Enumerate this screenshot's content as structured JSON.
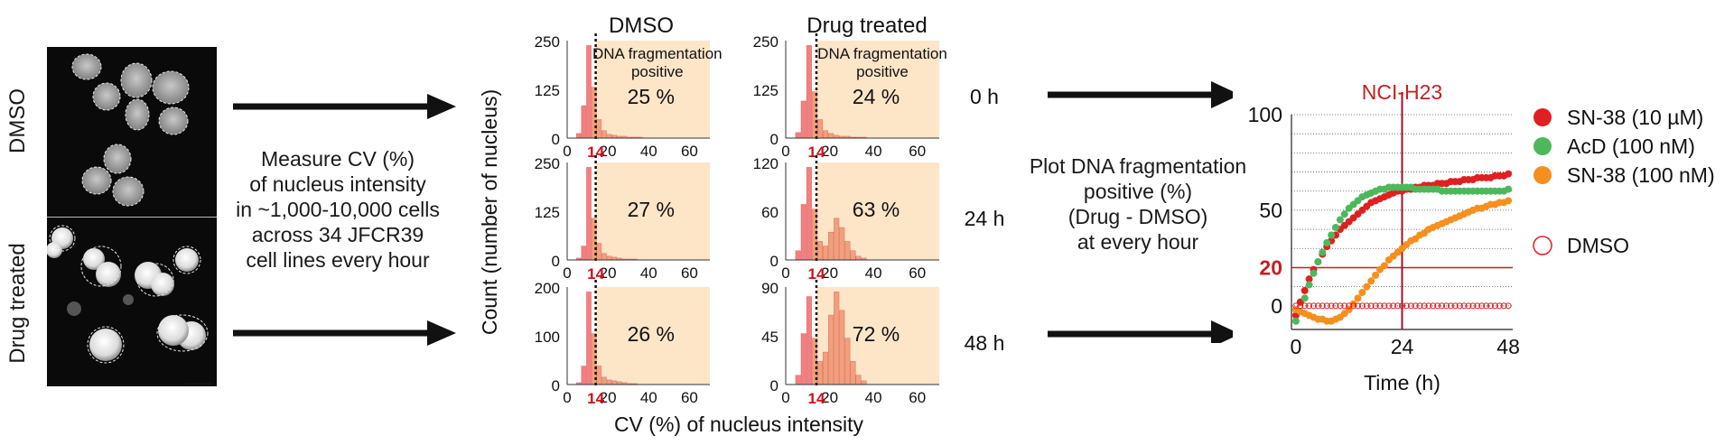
{
  "images": {
    "top_label": "DMSO",
    "bottom_label": "Drug treated"
  },
  "measure_text": [
    "Measure CV (%)",
    "of nucleus intensity",
    "in ~1,000-10,000 cells",
    "across 34 JFCR39",
    "cell lines every hour"
  ],
  "plot_text": [
    "Plot DNA fragmentation",
    "positive (%)",
    "(Drug - DMSO)",
    "at every hour"
  ],
  "histograms": {
    "col_titles": [
      "DMSO",
      "Drug treated"
    ],
    "y_title": "Count (number of nucleus)",
    "x_title": "CV (%) of nucleus intensity",
    "threshold": "14",
    "positive_label": [
      "DNA fragmentation",
      "positive"
    ],
    "x_ticks": [
      "0",
      "20",
      "40",
      "60"
    ],
    "rows": [
      {
        "time": "0 h",
        "dmso": {
          "yticks": [
            "250",
            "125",
            "0"
          ],
          "pct": "25 %"
        },
        "drug": {
          "yticks": [
            "250",
            "125",
            "0"
          ],
          "pct": "24 %"
        }
      },
      {
        "time": "24 h",
        "dmso": {
          "yticks": [
            "250",
            "125",
            "0"
          ],
          "pct": "27 %"
        },
        "drug": {
          "yticks": [
            "120",
            "60",
            "0"
          ],
          "pct": "63 %"
        }
      },
      {
        "time": "48 h",
        "dmso": {
          "yticks": [
            "200",
            "100",
            "0"
          ],
          "pct": "26 %"
        },
        "drug": {
          "yticks": [
            "90",
            "45",
            "0"
          ],
          "pct": "72 %"
        }
      }
    ]
  },
  "chart_data": {
    "type": "scatter",
    "title": "NCI-H23",
    "xlabel": "Time (h)",
    "ylabel": "",
    "xlim": [
      -1,
      49
    ],
    "ylim": [
      -10,
      100
    ],
    "x_ticks": [
      "0",
      "24",
      "48"
    ],
    "y_ticks": [
      "100",
      "50",
      "20",
      "0"
    ],
    "reference_lines": {
      "x": 24,
      "y": 20
    },
    "series": [
      {
        "name": "SN-38 (10 µM)",
        "color": "#e02020",
        "x": [
          0,
          1,
          2,
          3,
          4,
          5,
          6,
          7,
          8,
          9,
          10,
          11,
          12,
          13,
          14,
          15,
          16,
          17,
          18,
          19,
          20,
          21,
          22,
          23,
          24,
          25,
          26,
          27,
          28,
          29,
          30,
          31,
          32,
          33,
          34,
          35,
          36,
          37,
          38,
          39,
          40,
          41,
          42,
          43,
          44,
          45,
          46,
          47,
          48
        ],
        "y": [
          -5,
          2,
          8,
          14,
          19,
          23,
          27,
          31,
          34,
          37,
          40,
          42,
          44,
          46,
          48,
          50,
          52,
          54,
          55,
          56,
          57,
          58,
          59,
          60,
          60,
          61,
          61,
          62,
          62,
          63,
          63,
          63,
          64,
          64,
          64,
          65,
          65,
          65,
          66,
          66,
          66,
          67,
          67,
          67,
          67,
          68,
          68,
          68,
          69
        ]
      },
      {
        "name": "AcD (100 nM)",
        "color": "#4cb85c",
        "x": [
          0,
          1,
          2,
          3,
          4,
          5,
          6,
          7,
          8,
          9,
          10,
          11,
          12,
          13,
          14,
          15,
          16,
          17,
          18,
          19,
          20,
          21,
          22,
          23,
          24,
          25,
          26,
          27,
          28,
          29,
          30,
          31,
          32,
          33,
          34,
          35,
          36,
          37,
          38,
          39,
          40,
          41,
          42,
          43,
          44,
          45,
          46,
          47,
          48
        ],
        "y": [
          -8,
          -3,
          4,
          11,
          17,
          23,
          28,
          33,
          37,
          41,
          45,
          48,
          51,
          53,
          55,
          57,
          58,
          59,
          60,
          61,
          61,
          62,
          62,
          62,
          62,
          62,
          62,
          61,
          61,
          61,
          61,
          61,
          61,
          60,
          60,
          60,
          60,
          60,
          60,
          60,
          60,
          60,
          60,
          60,
          60,
          60,
          60,
          60,
          61
        ]
      },
      {
        "name": "SN-38 (100 nM)",
        "color": "#f5901e",
        "x": [
          0,
          1,
          2,
          3,
          4,
          5,
          6,
          7,
          8,
          9,
          10,
          11,
          12,
          13,
          14,
          15,
          16,
          17,
          18,
          19,
          20,
          21,
          22,
          23,
          24,
          25,
          26,
          27,
          28,
          29,
          30,
          31,
          32,
          33,
          34,
          35,
          36,
          37,
          38,
          39,
          40,
          41,
          42,
          43,
          44,
          45,
          46,
          47,
          48
        ],
        "y": [
          -2,
          -3,
          -4,
          -5,
          -6,
          -7,
          -7,
          -8,
          -8,
          -7,
          -6,
          -4,
          -2,
          1,
          4,
          7,
          10,
          13,
          16,
          19,
          21,
          24,
          26,
          28,
          30,
          32,
          34,
          35,
          37,
          38,
          40,
          41,
          42,
          43,
          44,
          45,
          46,
          47,
          48,
          49,
          50,
          51,
          51,
          52,
          53,
          53,
          54,
          54,
          55
        ]
      },
      {
        "name": "DMSO",
        "color": "#e02020",
        "marker": "open",
        "x": [
          0,
          1,
          2,
          3,
          4,
          5,
          6,
          7,
          8,
          9,
          10,
          11,
          12,
          13,
          14,
          15,
          16,
          17,
          18,
          19,
          20,
          21,
          22,
          23,
          24,
          25,
          26,
          27,
          28,
          29,
          30,
          31,
          32,
          33,
          34,
          35,
          36,
          37,
          38,
          39,
          40,
          41,
          42,
          43,
          44,
          45,
          46,
          47,
          48
        ],
        "y": [
          0,
          0,
          0,
          0,
          0,
          0,
          0,
          0,
          0,
          0,
          0,
          0,
          0,
          0,
          0,
          0,
          0,
          0,
          0,
          0,
          0,
          0,
          0,
          0,
          0,
          0,
          0,
          0,
          0,
          0,
          0,
          0,
          0,
          0,
          0,
          0,
          0,
          0,
          0,
          0,
          0,
          0,
          0,
          0,
          0,
          0,
          0,
          0,
          0
        ]
      }
    ]
  }
}
